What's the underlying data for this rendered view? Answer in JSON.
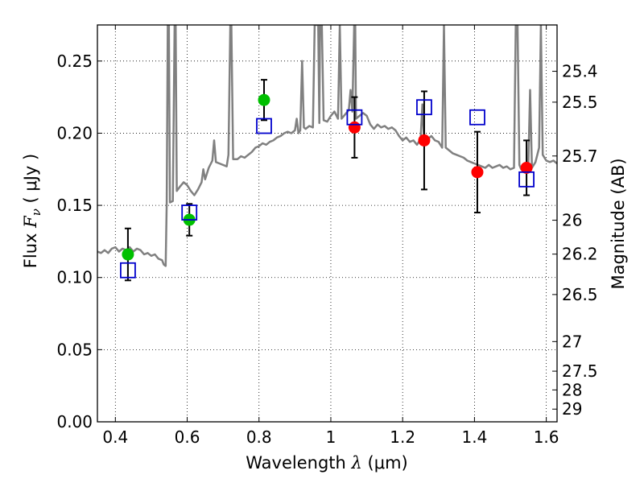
{
  "chart_data": {
    "type": "scatter",
    "title": "",
    "xlabel": {
      "text": "Wavelength",
      "symbol": "λ",
      "unit": "(μm)"
    },
    "ylabel": {
      "text": "Flux",
      "symbol": "F",
      "subscript": "ν",
      "unit": "(  μJy )"
    },
    "y2label": "Magnitude (AB)",
    "xlim": [
      0.35,
      1.63
    ],
    "ylim": [
      0.0,
      0.275
    ],
    "grid": true,
    "x_ticks": [
      0.4,
      0.6,
      0.8,
      1.0,
      1.2,
      1.4,
      1.6
    ],
    "x_tick_labels": [
      "0.4",
      "0.6",
      "0.8",
      "1",
      "1.2",
      "1.4",
      "1.6"
    ],
    "y_ticks": [
      0.0,
      0.05,
      0.1,
      0.15,
      0.2,
      0.25
    ],
    "y_tick_labels": [
      "0.00",
      "0.05",
      "0.10",
      "0.15",
      "0.20",
      "0.25"
    ],
    "y2_ticks": [
      {
        "label": "25.4",
        "flux": 0.2429
      },
      {
        "label": "25.5",
        "flux": 0.2215
      },
      {
        "label": "25.7",
        "flux": 0.1842
      },
      {
        "label": "26",
        "flux": 0.1397
      },
      {
        "label": "26.2",
        "flux": 0.1162
      },
      {
        "label": "26.5",
        "flux": 0.0882
      },
      {
        "label": "27",
        "flux": 0.0556
      },
      {
        "label": "27.5",
        "flux": 0.0351
      },
      {
        "label": "28",
        "flux": 0.0221
      },
      {
        "label": "29",
        "flux": 0.0088
      }
    ],
    "series": [
      {
        "color": "#00c000",
        "marker": "circle",
        "points": [
          {
            "x": 0.435,
            "y": 0.116,
            "err": 0.018
          },
          {
            "x": 0.606,
            "y": 0.14,
            "err": 0.011
          },
          {
            "x": 0.814,
            "y": 0.223,
            "err": 0.014
          }
        ]
      },
      {
        "color": "#ff0000",
        "marker": "circle",
        "points": [
          {
            "x": 1.066,
            "y": 0.204,
            "err": 0.021
          },
          {
            "x": 1.26,
            "y": 0.195,
            "err": 0.034
          },
          {
            "x": 1.408,
            "y": 0.173,
            "err": 0.028
          },
          {
            "x": 1.545,
            "y": 0.176,
            "err": 0.019
          }
        ]
      },
      {
        "color": "#0000cc",
        "marker": "open-square",
        "points": [
          {
            "x": 0.435,
            "y": 0.105
          },
          {
            "x": 0.606,
            "y": 0.145
          },
          {
            "x": 0.814,
            "y": 0.205
          },
          {
            "x": 1.066,
            "y": 0.211
          },
          {
            "x": 1.26,
            "y": 0.218
          },
          {
            "x": 1.408,
            "y": 0.211
          },
          {
            "x": 1.545,
            "y": 0.168
          }
        ]
      }
    ],
    "model_spectrum": {
      "color": "#808080",
      "points": [
        [
          0.35,
          0.118
        ],
        [
          0.36,
          0.117
        ],
        [
          0.37,
          0.119
        ],
        [
          0.38,
          0.117
        ],
        [
          0.39,
          0.12
        ],
        [
          0.4,
          0.121
        ],
        [
          0.41,
          0.118
        ],
        [
          0.42,
          0.12
        ],
        [
          0.43,
          0.119
        ],
        [
          0.44,
          0.121
        ],
        [
          0.45,
          0.118
        ],
        [
          0.46,
          0.12
        ],
        [
          0.47,
          0.119
        ],
        [
          0.48,
          0.116
        ],
        [
          0.49,
          0.117
        ],
        [
          0.5,
          0.115
        ],
        [
          0.51,
          0.116
        ],
        [
          0.52,
          0.113
        ],
        [
          0.53,
          0.112
        ],
        [
          0.535,
          0.109
        ],
        [
          0.54,
          0.108
        ],
        [
          0.543,
          0.152
        ],
        [
          0.546,
          0.275
        ],
        [
          0.549,
          0.275
        ],
        [
          0.552,
          0.152
        ],
        [
          0.56,
          0.153
        ],
        [
          0.565,
          0.275
        ],
        [
          0.568,
          0.275
        ],
        [
          0.571,
          0.16
        ],
        [
          0.58,
          0.163
        ],
        [
          0.59,
          0.166
        ],
        [
          0.6,
          0.164
        ],
        [
          0.61,
          0.16
        ],
        [
          0.62,
          0.157
        ],
        [
          0.63,
          0.161
        ],
        [
          0.64,
          0.166
        ],
        [
          0.645,
          0.175
        ],
        [
          0.65,
          0.168
        ],
        [
          0.66,
          0.176
        ],
        [
          0.67,
          0.181
        ],
        [
          0.675,
          0.195
        ],
        [
          0.68,
          0.18
        ],
        [
          0.69,
          0.179
        ],
        [
          0.7,
          0.178
        ],
        [
          0.71,
          0.177
        ],
        [
          0.715,
          0.185
        ],
        [
          0.72,
          0.275
        ],
        [
          0.723,
          0.275
        ],
        [
          0.728,
          0.182
        ],
        [
          0.74,
          0.182
        ],
        [
          0.75,
          0.184
        ],
        [
          0.76,
          0.183
        ],
        [
          0.77,
          0.185
        ],
        [
          0.78,
          0.187
        ],
        [
          0.79,
          0.19
        ],
        [
          0.8,
          0.191
        ],
        [
          0.81,
          0.193
        ],
        [
          0.82,
          0.192
        ],
        [
          0.83,
          0.194
        ],
        [
          0.84,
          0.195
        ],
        [
          0.85,
          0.197
        ],
        [
          0.86,
          0.198
        ],
        [
          0.87,
          0.2
        ],
        [
          0.88,
          0.201
        ],
        [
          0.89,
          0.2
        ],
        [
          0.9,
          0.202
        ],
        [
          0.905,
          0.21
        ],
        [
          0.91,
          0.2
        ],
        [
          0.915,
          0.202
        ],
        [
          0.92,
          0.25
        ],
        [
          0.925,
          0.204
        ],
        [
          0.93,
          0.203
        ],
        [
          0.94,
          0.205
        ],
        [
          0.95,
          0.204
        ],
        [
          0.955,
          0.275
        ],
        [
          0.965,
          0.275
        ],
        [
          0.968,
          0.207
        ],
        [
          0.97,
          0.275
        ],
        [
          0.975,
          0.275
        ],
        [
          0.98,
          0.209
        ],
        [
          0.99,
          0.208
        ],
        [
          1.0,
          0.212
        ],
        [
          1.01,
          0.215
        ],
        [
          1.02,
          0.21
        ],
        [
          1.025,
          0.275
        ],
        [
          1.03,
          0.21
        ],
        [
          1.04,
          0.213
        ],
        [
          1.05,
          0.216
        ],
        [
          1.055,
          0.23
        ],
        [
          1.06,
          0.215
        ],
        [
          1.065,
          0.275
        ],
        [
          1.068,
          0.275
        ],
        [
          1.07,
          0.21
        ],
        [
          1.08,
          0.212
        ],
        [
          1.09,
          0.214
        ],
        [
          1.1,
          0.212
        ],
        [
          1.11,
          0.206
        ],
        [
          1.12,
          0.203
        ],
        [
          1.13,
          0.206
        ],
        [
          1.14,
          0.204
        ],
        [
          1.15,
          0.205
        ],
        [
          1.16,
          0.203
        ],
        [
          1.17,
          0.204
        ],
        [
          1.18,
          0.202
        ],
        [
          1.19,
          0.198
        ],
        [
          1.2,
          0.195
        ],
        [
          1.21,
          0.197
        ],
        [
          1.22,
          0.194
        ],
        [
          1.23,
          0.195
        ],
        [
          1.24,
          0.192
        ],
        [
          1.25,
          0.196
        ],
        [
          1.255,
          0.22
        ],
        [
          1.26,
          0.194
        ],
        [
          1.27,
          0.196
        ],
        [
          1.28,
          0.198
        ],
        [
          1.29,
          0.195
        ],
        [
          1.3,
          0.194
        ],
        [
          1.31,
          0.19
        ],
        [
          1.315,
          0.275
        ],
        [
          1.32,
          0.19
        ],
        [
          1.33,
          0.188
        ],
        [
          1.34,
          0.186
        ],
        [
          1.35,
          0.185
        ],
        [
          1.36,
          0.184
        ],
        [
          1.37,
          0.183
        ],
        [
          1.38,
          0.181
        ],
        [
          1.39,
          0.18
        ],
        [
          1.4,
          0.179
        ],
        [
          1.41,
          0.178
        ],
        [
          1.42,
          0.177
        ],
        [
          1.43,
          0.176
        ],
        [
          1.44,
          0.178
        ],
        [
          1.45,
          0.176
        ],
        [
          1.46,
          0.177
        ],
        [
          1.47,
          0.178
        ],
        [
          1.48,
          0.176
        ],
        [
          1.49,
          0.177
        ],
        [
          1.5,
          0.175
        ],
        [
          1.51,
          0.176
        ],
        [
          1.515,
          0.275
        ],
        [
          1.52,
          0.275
        ],
        [
          1.525,
          0.178
        ],
        [
          1.53,
          0.175
        ],
        [
          1.54,
          0.177
        ],
        [
          1.55,
          0.178
        ],
        [
          1.555,
          0.23
        ],
        [
          1.56,
          0.176
        ],
        [
          1.57,
          0.18
        ],
        [
          1.58,
          0.19
        ],
        [
          1.585,
          0.275
        ],
        [
          1.59,
          0.185
        ],
        [
          1.6,
          0.181
        ],
        [
          1.61,
          0.18
        ],
        [
          1.62,
          0.181
        ],
        [
          1.63,
          0.179
        ]
      ]
    }
  }
}
